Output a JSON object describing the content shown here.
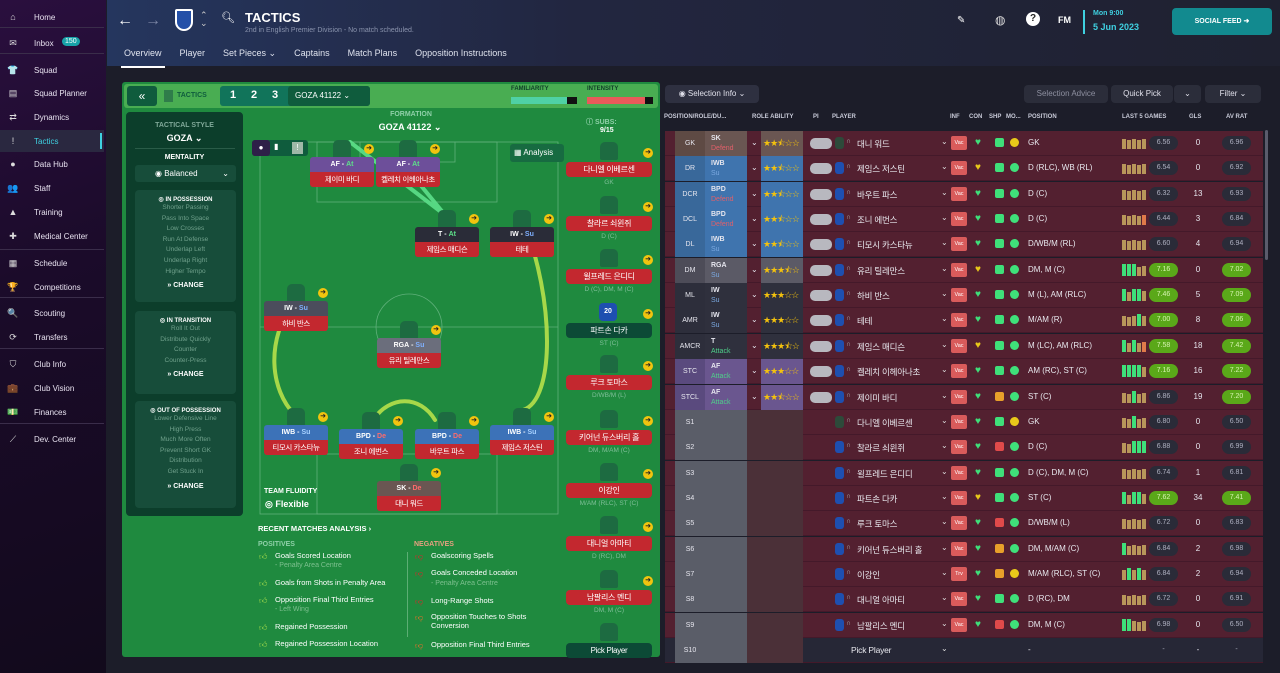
{
  "sidebar": {
    "inbox_badge": "150",
    "items": [
      {
        "label": "Home",
        "icon": "home-icon",
        "glyph": "⌂"
      },
      {
        "label": "Inbox",
        "icon": "inbox-icon",
        "glyph": "✉"
      },
      {
        "label": "Squad",
        "icon": "shirt-icon",
        "glyph": "👕"
      },
      {
        "label": "Squad Planner",
        "icon": "clipboard-icon",
        "glyph": "▤"
      },
      {
        "label": "Dynamics",
        "icon": "dynamics-icon",
        "glyph": "⇄"
      },
      {
        "label": "Tactics",
        "icon": "tactics-icon",
        "glyph": "!",
        "active": true
      },
      {
        "label": "Data Hub",
        "icon": "data-hub-icon",
        "glyph": "●"
      },
      {
        "label": "Staff",
        "icon": "staff-icon",
        "glyph": "👥"
      },
      {
        "label": "Training",
        "icon": "training-icon",
        "glyph": "▲"
      },
      {
        "label": "Medical Center",
        "icon": "medical-icon",
        "glyph": "✚"
      },
      {
        "label": "Schedule",
        "icon": "calendar-icon",
        "glyph": "▦"
      },
      {
        "label": "Competitions",
        "icon": "trophy-icon",
        "glyph": "🏆"
      },
      {
        "label": "Scouting",
        "icon": "search-icon",
        "glyph": "🔍"
      },
      {
        "label": "Transfers",
        "icon": "transfers-icon",
        "glyph": "⟳"
      },
      {
        "label": "Club Info",
        "icon": "shield-icon",
        "glyph": "⛉"
      },
      {
        "label": "Club Vision",
        "icon": "briefcase-icon",
        "glyph": "💼"
      },
      {
        "label": "Finances",
        "icon": "money-icon",
        "glyph": "💵"
      },
      {
        "label": "Dev. Center",
        "icon": "dev-center-icon",
        "glyph": "⟋"
      }
    ]
  },
  "header": {
    "title": "TACTICS",
    "subtitle": "2nd in English Premier Division - No match scheduled.",
    "day_time": "Mon 9:00",
    "date": "5 Jun 2023",
    "fm_label": "FM",
    "social_feed": "SOCIAL FEED",
    "tabs": [
      "Overview",
      "Player",
      "Set Pieces ⌄",
      "Captains",
      "Match Plans",
      "Opposition Instructions"
    ]
  },
  "tactics": {
    "label": "TACTICS",
    "slots": [
      "1",
      "2",
      "3"
    ],
    "selected_tactic": "GOZA 41122",
    "familiarity_label": "FAMILIARITY",
    "familiarity": 0.85,
    "intensity_label": "INTENSITY",
    "intensity": 0.88,
    "tactical_style_label": "TACTICAL STYLE",
    "tactical_style": "GOZA",
    "mentality_label": "MENTALITY",
    "mentality": "Balanced",
    "in_possession": {
      "title": "IN POSSESSION",
      "items": [
        "Shorter Passing",
        "Pass Into Space",
        "Low Crosses",
        "Run At Defense",
        "Underlap Left",
        "Underlap Right",
        "Higher Tempo"
      ],
      "change": "CHANGE"
    },
    "in_transition": {
      "title": "IN TRANSITION",
      "items": [
        "Roll It Out",
        "Distribute Quickly",
        "Counter",
        "Counter-Press"
      ],
      "change": "CHANGE"
    },
    "out_of_possession": {
      "title": "OUT OF POSSESSION",
      "items": [
        "Lower Defensive Line",
        "High Press",
        "Much More Often",
        "Prevent Short GK",
        "Distribution",
        "Get Stuck In"
      ],
      "change": "CHANGE"
    },
    "formation_label": "FORMATION",
    "formation": "GOZA 41122",
    "analysis": "Analysis",
    "subs_label": "SUBS:",
    "subs_count": "9/15",
    "team_fluidity_label": "TEAM FLUIDITY",
    "team_fluidity": "Flexible"
  },
  "pitch": [
    {
      "role": "AF",
      "duty": "At",
      "name": "제이미 바디",
      "color": "#6d4f9a",
      "dcol": "#5de08a"
    },
    {
      "role": "AF",
      "duty": "At",
      "name": "켈레치 이헤아나초",
      "color": "#6d4f9a",
      "dcol": "#5de08a"
    },
    {
      "role": "T",
      "duty": "At",
      "name": "제임스 매디슨",
      "color": "#2a2c38",
      "dcol": "#5de08a"
    },
    {
      "role": "IW",
      "duty": "Su",
      "name": "테테",
      "color": "#2a2c38",
      "dcol": "#7fb0ff"
    },
    {
      "role": "IW",
      "duty": "Su",
      "name": "하비 반스",
      "color": "#4b4d5c",
      "dcol": "#7fb0ff"
    },
    {
      "role": "RGA",
      "duty": "Su",
      "name": "유리 틸레만스",
      "color": "#6b6e7c",
      "dcol": "#7fb0ff"
    },
    {
      "role": "IWB",
      "duty": "Su",
      "name": "티모시 카스타뉴",
      "color": "#3c72b8",
      "dcol": "#a7d1ff"
    },
    {
      "role": "BPD",
      "duty": "De",
      "name": "조니 에번스",
      "color": "#3c72b8",
      "dcol": "#ff6b6b"
    },
    {
      "role": "BPD",
      "duty": "De",
      "name": "바우트 파스",
      "color": "#3c72b8",
      "dcol": "#ff6b6b"
    },
    {
      "role": "IWB",
      "duty": "Su",
      "name": "제임스 저스틴",
      "color": "#3c72b8",
      "dcol": "#a7d1ff"
    },
    {
      "role": "SK",
      "duty": "De",
      "name": "대니 워드",
      "color": "#6a5652",
      "dcol": "#ff6b6b"
    }
  ],
  "subs": [
    {
      "name": "다니엘 이베르센",
      "pos": "GK"
    },
    {
      "name": "찰라르 쇠윈쥐",
      "pos": "D (C)"
    },
    {
      "name": "윌프레드 은디디",
      "pos": "D (C), DM, M (C)"
    },
    {
      "name": "파트손 다카",
      "pos": "ST (C)",
      "number": "20",
      "selected": true
    },
    {
      "name": "루크 토마스",
      "pos": "D/WB/M (L)"
    },
    {
      "name": "키어넌 듀스버리 홀",
      "pos": "DM, M/AM (C)"
    },
    {
      "name": "이강인",
      "pos": "M/AM (RLC), ST (C)"
    },
    {
      "name": "대니얼 아마티",
      "pos": "D (RC), DM"
    },
    {
      "name": "남팔리스 멘디",
      "pos": "DM, M (C)"
    },
    {
      "name": "Pick Player",
      "pos": ""
    }
  ],
  "analysis": {
    "title": "RECENT MATCHES ANALYSIS ›",
    "positives_label": "POSITIVES",
    "positives": [
      {
        "text": "Goals Scored Location",
        "sub": "- Penalty Area Centre"
      },
      {
        "text": "Goals from Shots in Penalty Area",
        "sub": ""
      },
      {
        "text": "Opposition Final Third Entries",
        "sub": "- Left Wing"
      },
      {
        "text": "Regained Possession",
        "sub": ""
      },
      {
        "text": "Regained Possession Location",
        "sub": ""
      }
    ],
    "negatives_label": "NEGATIVES",
    "negatives": [
      {
        "text": "Goalscoring Spells",
        "sub": ""
      },
      {
        "text": "Goals Conceded Location",
        "sub": "- Penalty Area Centre"
      },
      {
        "text": "Long-Range Shots",
        "sub": ""
      },
      {
        "text": "Opposition Touches to Shots Conversion",
        "sub": ""
      },
      {
        "text": "Opposition Final Third Entries",
        "sub": ""
      }
    ]
  },
  "selection": {
    "selection_info": "Selection Info",
    "selection_advice": "Selection Advice",
    "quick_pick": "Quick Pick",
    "filter": "Filter",
    "columns": [
      "POSITION/ROLE/DU...",
      "ROLE ABILITY",
      "PI",
      "PLAYER",
      "INF",
      "CON",
      "SHP",
      "MO...",
      "POSITION",
      "LAST 5 GAMES",
      "GLS",
      "AV RAT"
    ],
    "rows": [
      {
        "pos": "GK",
        "role": "SK",
        "duty": "Defend",
        "stars": 2.5,
        "name": "대니 워드",
        "inf": "Vac",
        "con": "green",
        "shp": "green",
        "mo": "yellow",
        "position": "GK",
        "bars": "ttttt",
        "last5": "6.56",
        "gls": "0",
        "avrat": "6.96"
      },
      {
        "pos": "DR",
        "role": "IWB",
        "duty": "Su",
        "stars": 2.5,
        "name": "제임스 저스틴",
        "inf": "Vac",
        "con": "yellow",
        "shp": "green",
        "mo": "green",
        "position": "D (RLC), WB (RL)",
        "bars": "ttttt",
        "last5": "6.54",
        "gls": "0",
        "avrat": "6.92"
      },
      {
        "pos": "DCR",
        "role": "BPD",
        "duty": "Defend",
        "stars": 2.5,
        "name": "바우트 파스",
        "inf": "Vac",
        "con": "green",
        "shp": "green",
        "mo": "green",
        "position": "D (C)",
        "bars": "ttttt",
        "last5": "6.32",
        "gls": "13",
        "avrat": "6.93"
      },
      {
        "pos": "DCL",
        "role": "BPD",
        "duty": "Defend",
        "stars": 2.5,
        "name": "조니 에번스",
        "inf": "Vac",
        "con": "green",
        "shp": "green",
        "mo": "green",
        "position": "D (C)",
        "bars": "tttto",
        "last5": "6.44",
        "gls": "3",
        "avrat": "6.84"
      },
      {
        "pos": "DL",
        "role": "IWB",
        "duty": "Su",
        "stars": 2.5,
        "name": "티모시 카스타뉴",
        "inf": "Vac",
        "con": "green",
        "shp": "green",
        "mo": "green",
        "position": "D/WB/M (RL)",
        "bars": "ttttt",
        "last5": "6.60",
        "gls": "4",
        "avrat": "6.94"
      },
      {
        "pos": "DM",
        "role": "RGA",
        "duty": "Su",
        "stars": 3.5,
        "name": "유리 틸레만스",
        "inf": "Vac",
        "con": "yellow",
        "shp": "green",
        "mo": "green",
        "position": "DM, M (C)",
        "bars": "gggtt",
        "last5": "7.16",
        "gls": "0",
        "avrat": "7.02"
      },
      {
        "pos": "ML",
        "role": "IW",
        "duty": "Su",
        "stars": 3,
        "name": "하비 반스",
        "inf": "Vac",
        "con": "green",
        "shp": "green",
        "mo": "green",
        "position": "M (L), AM (RLC)",
        "bars": "gtggt",
        "last5": "7.46",
        "gls": "5",
        "avrat": "7.09"
      },
      {
        "pos": "AMR",
        "role": "IW",
        "duty": "Su",
        "stars": 3,
        "name": "테테",
        "inf": "Vac",
        "con": "green",
        "shp": "green",
        "mo": "green",
        "position": "M/AM (R)",
        "bars": "tttgt",
        "last5": "7.00",
        "gls": "8",
        "avrat": "7.06"
      },
      {
        "pos": "AMCR",
        "role": "T",
        "duty": "Attack",
        "stars": 3.5,
        "name": "제임스 매디슨",
        "inf": "Vac",
        "con": "yellow",
        "shp": "green",
        "mo": "green",
        "position": "M (LC), AM (RLC)",
        "bars": "gtgto",
        "last5": "7.58",
        "gls": "18",
        "avrat": "7.42"
      },
      {
        "pos": "STC",
        "role": "AF",
        "duty": "Attack",
        "stars": 3,
        "name": "켈레치 이헤아나초",
        "inf": "Vac",
        "con": "green",
        "shp": "green",
        "mo": "green",
        "position": "AM (RC), ST (C)",
        "bars": "ggggt",
        "last5": "7.16",
        "gls": "16",
        "avrat": "7.22"
      },
      {
        "pos": "STCL",
        "role": "AF",
        "duty": "Attack",
        "stars": 2.5,
        "name": "제이미 바디",
        "inf": "Vac",
        "con": "green",
        "shp": "orange",
        "mo": "green",
        "position": "ST (C)",
        "bars": "ttgtt",
        "last5": "6.86",
        "gls": "19",
        "avrat": "7.20"
      },
      {
        "pos": "S1",
        "role": "",
        "duty": "",
        "stars": 0,
        "name": "다니엘 이베르센",
        "inf": "Vac",
        "con": "green",
        "shp": "green",
        "mo": "yellow",
        "position": "GK",
        "bars": "ttgtt",
        "last5": "6.80",
        "gls": "0",
        "avrat": "6.50"
      },
      {
        "pos": "S2",
        "role": "",
        "duty": "",
        "stars": 0,
        "name": "찰라르 쇠윈쥐",
        "inf": "Vac",
        "con": "green",
        "shp": "red",
        "mo": "green",
        "position": "D (C)",
        "bars": "ttggg",
        "last5": "6.88",
        "gls": "0",
        "avrat": "6.99"
      },
      {
        "pos": "S3",
        "role": "",
        "duty": "",
        "stars": 0,
        "name": "윌프레드 은디디",
        "inf": "Vac",
        "con": "green",
        "shp": "green",
        "mo": "green",
        "position": "D (C), DM, M (C)",
        "bars": "ttttt",
        "last5": "6.74",
        "gls": "1",
        "avrat": "6.81"
      },
      {
        "pos": "S4",
        "role": "",
        "duty": "",
        "stars": 0,
        "name": "파트손 다카",
        "inf": "Vac",
        "con": "yellow",
        "shp": "green",
        "mo": "green",
        "position": "ST (C)",
        "bars": "gtggt",
        "last5": "7.62",
        "gls": "34",
        "avrat": "7.41"
      },
      {
        "pos": "S5",
        "role": "",
        "duty": "",
        "stars": 0,
        "name": "루크 토마스",
        "inf": "Vac",
        "con": "green",
        "shp": "red",
        "mo": "green",
        "position": "D/WB/M (L)",
        "bars": "ttttt",
        "last5": "6.72",
        "gls": "0",
        "avrat": "6.83"
      },
      {
        "pos": "S6",
        "role": "",
        "duty": "",
        "stars": 0,
        "name": "키어넌 듀스버리 홀",
        "inf": "Vac",
        "con": "green",
        "shp": "orange",
        "mo": "green",
        "position": "DM, M/AM (C)",
        "bars": "gtttt",
        "last5": "6.84",
        "gls": "2",
        "avrat": "6.98"
      },
      {
        "pos": "S7",
        "role": "",
        "duty": "",
        "stars": 0,
        "name": "이강인",
        "inf": "Trv",
        "con": "green",
        "shp": "orange",
        "mo": "yellow",
        "position": "M/AM (RLC), ST (C)",
        "bars": "tgtgt",
        "last5": "6.84",
        "gls": "2",
        "avrat": "6.94"
      },
      {
        "pos": "S8",
        "role": "",
        "duty": "",
        "stars": 0,
        "name": "대니얼 아마티",
        "inf": "Vac",
        "con": "green",
        "shp": "green",
        "mo": "green",
        "position": "D (RC), DM",
        "bars": "ttttt",
        "last5": "6.72",
        "gls": "0",
        "avrat": "6.91"
      },
      {
        "pos": "S9",
        "role": "",
        "duty": "",
        "stars": 0,
        "name": "남팔리스 멘디",
        "inf": "Vac",
        "con": "green",
        "shp": "red",
        "mo": "green",
        "position": "DM, M (C)",
        "bars": "ggttt",
        "last5": "6.98",
        "gls": "0",
        "avrat": "6.50"
      },
      {
        "pos": "S10",
        "role": "",
        "duty": "",
        "stars": 0,
        "name": "Pick Player",
        "inf": "",
        "con": "",
        "shp": "",
        "mo": "",
        "position": "-",
        "bars": "",
        "last5": "-",
        "gls": "-",
        "avrat": "-"
      }
    ]
  },
  "colors": {
    "accent": "#3fd0e0",
    "social": "#128a8f",
    "pitch": "#1f8a3f",
    "row": "#532030",
    "rating_good": "#5aa819"
  }
}
